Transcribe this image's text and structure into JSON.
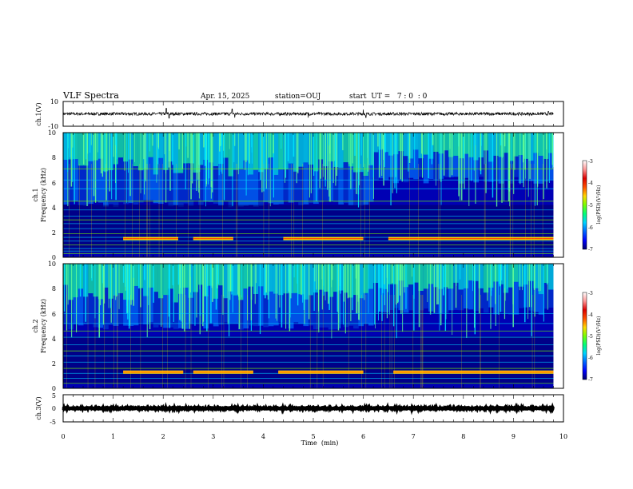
{
  "chart_data": {
    "type": "heatmap",
    "title": "VLF Spectra",
    "date": "Apr. 15, 2025",
    "station": "station=OUJ",
    "start_ut": "start  UT =   7 : 0  : 0",
    "xlabel": "Time  (min)",
    "xlim": [
      0,
      10
    ],
    "x_ticks": [
      "0",
      "1",
      "2",
      "3",
      "4",
      "5",
      "6",
      "7",
      "8",
      "9",
      "10"
    ],
    "panels": [
      {
        "id": "ch1-waveform",
        "type": "line",
        "ylabel": "ch.1(V)",
        "ylim": [
          -10,
          10
        ],
        "y_ticks": [
          "10",
          "-10"
        ],
        "baseline": 0,
        "amplitude": 1.2,
        "data_end_min": 9.8,
        "spikes": [
          {
            "t": 2.06,
            "v": 4.5
          },
          {
            "t": 2.12,
            "v": -3.5
          },
          {
            "t": 3.38,
            "v": 4
          },
          {
            "t": 3.43,
            "v": -3
          },
          {
            "t": 4.9,
            "v": -3
          },
          {
            "t": 6.0,
            "v": 3.5
          },
          {
            "t": 6.05,
            "v": -3
          },
          {
            "t": 9.7,
            "v": 2
          }
        ]
      },
      {
        "id": "ch1-spectrogram",
        "type": "heatmap",
        "ylabel_line1": "ch.1",
        "ylabel_line2": "Frequency  (kHz)",
        "ylim": [
          0,
          10
        ],
        "y_ticks": [
          "0",
          "2",
          "4",
          "6",
          "8",
          "10"
        ],
        "data_end_min": 9.8,
        "upper_boundary_khz": 4.3,
        "upper_boundary_late_khz": 6.2,
        "boundary_shift_min": 6.15,
        "band_lines_khz": [
          0.3,
          0.5,
          0.7,
          1.0,
          1.3,
          1.6,
          1.9,
          2.3,
          2.7,
          3.0,
          3.3,
          3.8,
          4.5,
          5.5,
          6.2,
          7.1
        ],
        "bright_band_segments": [
          {
            "t0": 1.2,
            "t1": 2.3,
            "f": 1.5
          },
          {
            "t0": 2.6,
            "t1": 3.4,
            "f": 1.5
          },
          {
            "t0": 4.4,
            "t1": 6.0,
            "f": 1.5
          },
          {
            "t0": 6.5,
            "t1": 9.8,
            "f": 1.5
          }
        ]
      },
      {
        "id": "ch2-spectrogram",
        "type": "heatmap",
        "ylabel_line1": "ch.2",
        "ylabel_line2": "Frequency  (kHz)",
        "ylim": [
          0,
          10
        ],
        "y_ticks": [
          "0",
          "2",
          "4",
          "6",
          "8",
          "10"
        ],
        "data_end_min": 9.8,
        "upper_boundary_khz": 5.0,
        "upper_boundary_late_khz": 6.2,
        "boundary_shift_min": 6.2,
        "band_lines_khz": [
          0.4,
          0.8,
          1.2,
          1.6,
          2.1,
          2.6,
          3.0,
          3.5,
          4.1,
          4.6,
          5.2,
          6.0
        ],
        "bright_band_segments": [
          {
            "t0": 1.2,
            "t1": 2.4,
            "f": 1.3
          },
          {
            "t0": 2.6,
            "t1": 3.8,
            "f": 1.3
          },
          {
            "t0": 4.3,
            "t1": 6.0,
            "f": 1.3
          },
          {
            "t0": 6.6,
            "t1": 9.8,
            "f": 1.3
          }
        ]
      },
      {
        "id": "ch3-waveform",
        "type": "line",
        "ylabel": "ch.3(V)",
        "ylim": [
          -5,
          5
        ],
        "y_ticks": [
          "5",
          "0",
          "-5"
        ],
        "baseline": 0,
        "amplitude": 0.25,
        "data_end_min": 9.8,
        "spikes": []
      }
    ],
    "colorbar": {
      "label": "log(PSD)(V²/Hz)",
      "range": [
        -7,
        -3
      ],
      "ticks": [
        "-3",
        "-4",
        "-5",
        "-6",
        "-7"
      ],
      "colors": [
        "#00006e",
        "#0000ff",
        "#0064ff",
        "#00d2ff",
        "#00ff78",
        "#78ff00",
        "#ffd700",
        "#ff5000",
        "#dc0000",
        "#ff9696",
        "#ffffff"
      ]
    }
  }
}
